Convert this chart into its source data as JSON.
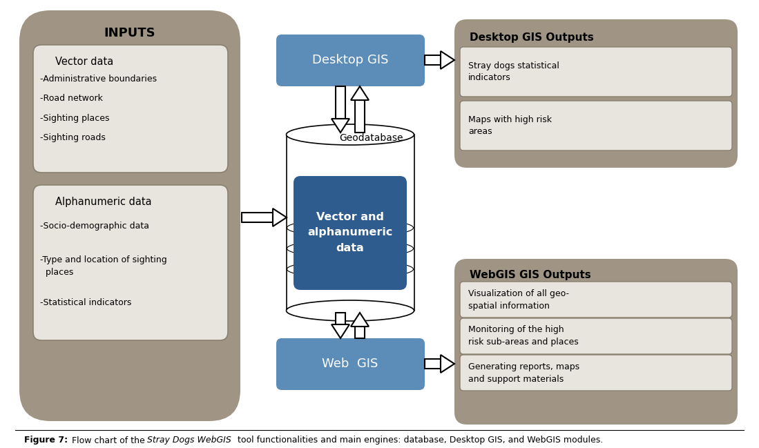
{
  "bg_color": "#ffffff",
  "taupe_color": "#a09585",
  "blue_color": "#5b8db8",
  "dark_blue_color": "#2e5c8e",
  "white_color": "#ffffff",
  "light_gray": "#e8e4de",
  "box_border": "#888070",
  "inputs_title": "INPUTS",
  "vector_label": "Vector data",
  "vector_items": [
    "-Administrative boundaries",
    "-Road network",
    "-Sighting places",
    "-Sighting roads"
  ],
  "alpha_label": "Alphanumeric data",
  "alpha_items": [
    "-Socio-demographic data",
    "-Type and location of sighting\n  places",
    "-Statistical indicators"
  ],
  "geodatabase_label": "Geodatabase",
  "center_label": "Vector and\nalphanumeric\ndata",
  "desktop_gis_label": "Desktop GIS",
  "web_gis_label": "Web  GIS",
  "desktop_outputs_title": "Desktop GIS Outputs",
  "desktop_output_items": [
    "Stray dogs statistical\nindicators",
    "Maps with high risk\nareas"
  ],
  "webgis_outputs_title": "WebGIS GIS Outputs",
  "webgis_output_items": [
    "Visualization of all geo-\nspatial information",
    "Monitoring of the high\nrisk sub-areas and places",
    "Generating reports, maps\nand support materials"
  ]
}
